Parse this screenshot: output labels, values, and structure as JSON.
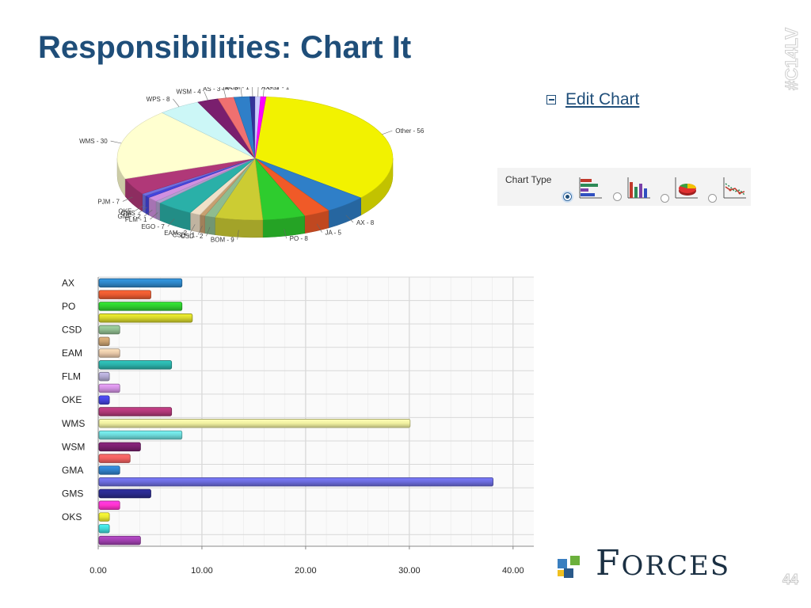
{
  "slide": {
    "title": "Responsibilities: Chart It",
    "side_tag": "#C14LV",
    "page_number": "44"
  },
  "logo": {
    "text": "Forces",
    "icon": "cubes-icon"
  },
  "edit_chart": {
    "label": "Edit Chart",
    "icon": "collapse-minus-icon"
  },
  "chart_type": {
    "label": "Chart Type",
    "options": [
      {
        "name": "horizontal-bar",
        "icon": "horizontal-bar-chart-icon",
        "selected": true
      },
      {
        "name": "vertical-bar",
        "icon": "vertical-bar-chart-icon",
        "selected": false
      },
      {
        "name": "pie",
        "icon": "pie-chart-icon",
        "selected": false
      },
      {
        "name": "line",
        "icon": "line-chart-icon",
        "selected": false
      }
    ]
  },
  "chart_data": [
    {
      "type": "pie",
      "style": "3d",
      "slices": [
        {
          "label": "Other - 56",
          "value": 56,
          "color": "#f2f200"
        },
        {
          "label": "AX - 8",
          "value": 8,
          "color": "#2f7fc8"
        },
        {
          "label": "JA - 5",
          "value": 5,
          "color": "#f05a28"
        },
        {
          "label": "PO - 8",
          "value": 8,
          "color": "#2ecc2e"
        },
        {
          "label": "BOM - 9",
          "value": 9,
          "color": "#cccc33"
        },
        {
          "label": "CSD - 2",
          "value": 2,
          "color": "#8fbc8f"
        },
        {
          "label": "CSD - 1",
          "value": 1,
          "color": "#c8a070"
        },
        {
          "label": "EAM - 2",
          "value": 2,
          "color": "#f0e0c8"
        },
        {
          "label": "EGO - 7",
          "value": 7,
          "color": "#2ab0a8"
        },
        {
          "label": "FLM - 1",
          "value": 1,
          "color": "#b0a0d0"
        },
        {
          "label": "GMF - 2",
          "value": 2,
          "color": "#d090e0"
        },
        {
          "label": "GMS",
          "value": 1,
          "color": "#4444dd"
        },
        {
          "label": "OKE",
          "value": 1,
          "color": "#7070e0"
        },
        {
          "label": "PJM - 7",
          "value": 7,
          "color": "#b03878"
        },
        {
          "label": "WMS - 30",
          "value": 30,
          "color": "#ffffd0"
        },
        {
          "label": "WPS - 8",
          "value": 8,
          "color": "#ccf7f7"
        },
        {
          "label": "WSM - 4",
          "value": 4,
          "color": "#7a1f6e"
        },
        {
          "label": "AS - 3",
          "value": 3,
          "color": "#f07070"
        },
        {
          "label": "JA - 3",
          "value": 3,
          "color": "#2f7fc8"
        },
        {
          "label": "BOM - 1",
          "value": 1,
          "color": "#333399"
        },
        {
          "label": "AX - 1",
          "value": 1,
          "color": "#ccccff"
        },
        {
          "label": "GST - 1",
          "value": 1,
          "color": "#ff00ff"
        }
      ]
    },
    {
      "type": "bar",
      "orientation": "horizontal",
      "xlim": [
        0,
        42
      ],
      "x_ticks": [
        "0.00",
        "10.00",
        "20.00",
        "30.00",
        "40.00"
      ],
      "x_tick_values": [
        0,
        10,
        20,
        30,
        40
      ],
      "category_labels": [
        "AX",
        "PO",
        "CSD",
        "EAM",
        "FLM",
        "OKE",
        "WMS",
        "WSM",
        "GMA",
        "GMS",
        "OKS"
      ],
      "bars": [
        {
          "value": 8,
          "color": "#2e86c8"
        },
        {
          "value": 5,
          "color": "#e85a30"
        },
        {
          "value": 8,
          "color": "#2ecc2e"
        },
        {
          "value": 9,
          "color": "#d4d42a"
        },
        {
          "value": 2,
          "color": "#8fbc8f"
        },
        {
          "value": 1,
          "color": "#c8a070"
        },
        {
          "value": 2,
          "color": "#e8c8a8"
        },
        {
          "value": 7,
          "color": "#2ab0a8"
        },
        {
          "value": 1,
          "color": "#b0a8d0"
        },
        {
          "value": 2,
          "color": "#d090e0"
        },
        {
          "value": 1,
          "color": "#4444dd"
        },
        {
          "value": 7,
          "color": "#b03878"
        },
        {
          "value": 30,
          "color": "#f0f0a0"
        },
        {
          "value": 8,
          "color": "#6cd8d8"
        },
        {
          "value": 4,
          "color": "#7a1f6e"
        },
        {
          "value": 3,
          "color": "#f06060"
        },
        {
          "value": 2,
          "color": "#2f7fc8"
        },
        {
          "value": 38,
          "color": "#6b6bdc"
        },
        {
          "value": 5,
          "color": "#2a2a8c"
        },
        {
          "value": 2,
          "color": "#ff33cc"
        },
        {
          "value": 1,
          "color": "#e8e830"
        },
        {
          "value": 1,
          "color": "#40d8d8"
        },
        {
          "value": 4,
          "color": "#a040b0"
        }
      ],
      "grid": true
    }
  ]
}
